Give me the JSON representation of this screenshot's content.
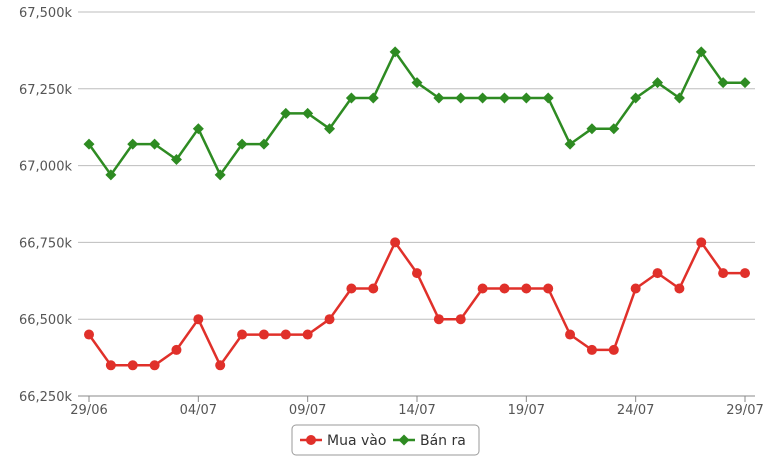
{
  "chart_data": {
    "type": "line",
    "title": "",
    "xlabel": "",
    "ylabel": "",
    "x": [
      "29/06",
      "30/06",
      "01/07",
      "02/07",
      "03/07",
      "04/07",
      "05/07",
      "06/07",
      "07/07",
      "08/07",
      "09/07",
      "10/07",
      "11/07",
      "12/07",
      "13/07",
      "14/07",
      "15/07",
      "16/07",
      "17/07",
      "18/07",
      "19/07",
      "20/07",
      "21/07",
      "22/07",
      "23/07",
      "24/07",
      "25/07",
      "26/07",
      "27/07",
      "28/07",
      "29/07"
    ],
    "x_tick_labels": [
      "29/06",
      "04/07",
      "09/07",
      "14/07",
      "19/07",
      "24/07",
      "29/07"
    ],
    "y_tick_labels": [
      "66,250k",
      "66,500k",
      "66,750k",
      "67,000k",
      "67,250k",
      "67,500k"
    ],
    "y_ticks": [
      66250,
      66500,
      66750,
      67000,
      67250,
      67500
    ],
    "ylim": [
      66250,
      67500
    ],
    "grid": true,
    "legend_position": "bottom-center",
    "series": [
      {
        "name": "Mua vào",
        "color": "#e0302a",
        "marker": "circle",
        "values": [
          66450,
          66350,
          66350,
          66350,
          66400,
          66500,
          66350,
          66450,
          66450,
          66450,
          66450,
          66500,
          66600,
          66600,
          66750,
          66650,
          66500,
          66500,
          66600,
          66600,
          66600,
          66600,
          66450,
          66400,
          66400,
          66600,
          66650,
          66600,
          66750,
          66650,
          66650
        ]
      },
      {
        "name": "Bán ra",
        "color": "#2e8b22",
        "marker": "diamond",
        "values": [
          67070,
          66970,
          67070,
          67070,
          67020,
          67120,
          66970,
          67070,
          67070,
          67170,
          67170,
          67120,
          67220,
          67220,
          67370,
          67270,
          67220,
          67220,
          67220,
          67220,
          67220,
          67220,
          67070,
          67120,
          67120,
          67220,
          67270,
          67220,
          67370,
          67270,
          67270
        ]
      }
    ]
  }
}
